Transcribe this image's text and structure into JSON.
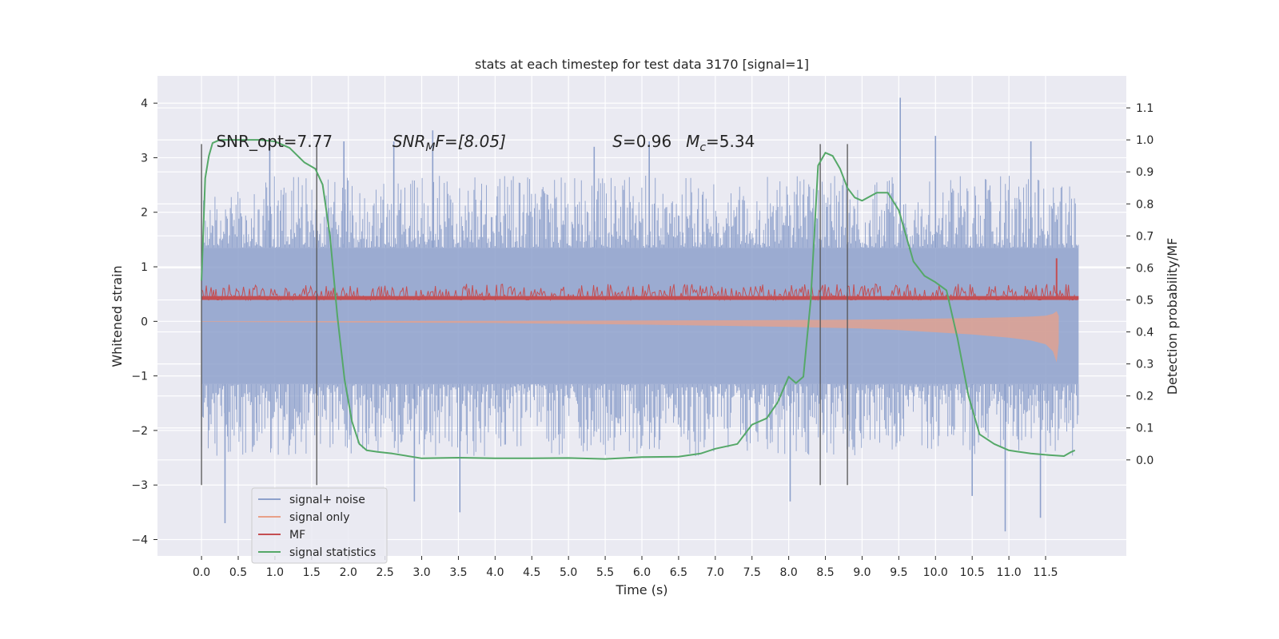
{
  "chart_data": {
    "type": "line",
    "title": "stats at each timestep for test data 3170 [signal=1]",
    "xlabel": "Time (s)",
    "ylabel": "Whitened strain",
    "y2label": "Detection probability/MF",
    "xlim": [
      -0.6,
      12.6
    ],
    "ylim": [
      -4.3,
      4.5
    ],
    "y2lim": [
      -0.3,
      1.2
    ],
    "xticks": [
      "0.0",
      "0.5",
      "1.0",
      "1.5",
      "2.0",
      "2.5",
      "3.0",
      "3.5",
      "4.0",
      "4.5",
      "5.0",
      "5.5",
      "6.0",
      "6.5",
      "7.0",
      "7.5",
      "8.0",
      "8.5",
      "9.0",
      "9.5",
      "10.0",
      "10.5",
      "11.0",
      "11.5"
    ],
    "yticks": [
      "4",
      "3",
      "2",
      "1",
      "0",
      "−1",
      "−2",
      "−3",
      "−4"
    ],
    "y2ticks": [
      "1.1",
      "1.0",
      "0.9",
      "0.8",
      "0.7",
      "0.6",
      "0.5",
      "0.4",
      "0.3",
      "0.2",
      "0.1",
      "0.0"
    ],
    "grid": true,
    "legend_position": "lower-left",
    "annotations": [
      {
        "prefix": "SNR_opt=7.77",
        "x": 0.2,
        "y": 3.3
      },
      {
        "prefix": "SNR",
        "sub": "M",
        "suffix": "F=[8.05]",
        "x": 2.6,
        "y": 3.3
      },
      {
        "prefix": "S",
        "suffix": "=0.96",
        "x": 5.6,
        "y": 3.3
      },
      {
        "prefix": "M",
        "sub": "c",
        "suffix": "=5.34",
        "x": 6.6,
        "y": 3.3
      }
    ],
    "vertical_lines": [
      {
        "x": 0.0,
        "y0": -3.0,
        "y1": 3.25
      },
      {
        "x": 1.57,
        "y0": -3.0,
        "y1": 3.25
      },
      {
        "x": 8.43,
        "y0": -3.0,
        "y1": 3.25
      },
      {
        "x": 8.8,
        "y0": -3.0,
        "y1": 3.25
      }
    ],
    "series": [
      {
        "name": "signal+ noise",
        "color": "#8da0cb",
        "axis": "left",
        "envelope": {
          "x_start": 0.0,
          "x_end": 11.95,
          "core_hi": 1.35,
          "core_lo": -1.15,
          "typical_hi": 2.5,
          "typical_lo": -2.3
        },
        "peaks": [
          {
            "x": 0.93,
            "y": 3.3
          },
          {
            "x": 1.94,
            "y": 3.3
          },
          {
            "x": 2.62,
            "y": 3.3
          },
          {
            "x": 3.15,
            "y": 3.5
          },
          {
            "x": 5.35,
            "y": 3.2
          },
          {
            "x": 6.1,
            "y": 3.3
          },
          {
            "x": 9.52,
            "y": 4.1
          },
          {
            "x": 10.0,
            "y": 3.4
          },
          {
            "x": 11.3,
            "y": 3.3
          },
          {
            "x": 0.32,
            "y": -3.7
          },
          {
            "x": 3.52,
            "y": -3.5
          },
          {
            "x": 10.5,
            "y": -3.2
          },
          {
            "x": 10.95,
            "y": -3.85
          },
          {
            "x": 11.43,
            "y": -3.6
          },
          {
            "x": 2.9,
            "y": -3.3
          },
          {
            "x": 8.02,
            "y": -3.3
          }
        ]
      },
      {
        "name": "signal only",
        "color": "#e8a088",
        "axis": "left",
        "x": [
          0.0,
          2.0,
          4.0,
          6.0,
          7.0,
          8.0,
          9.0,
          9.5,
          10.0,
          10.5,
          11.0,
          11.3,
          11.5,
          11.6,
          11.65,
          11.68
        ],
        "amplitude": [
          0.01,
          0.02,
          0.03,
          0.06,
          0.08,
          0.1,
          0.13,
          0.16,
          0.2,
          0.24,
          0.3,
          0.35,
          0.42,
          0.55,
          0.75,
          0.4
        ]
      },
      {
        "name": "MF",
        "color": "#c44e52",
        "axis": "right",
        "baseline": 0.5,
        "typical_max": 0.55,
        "spike": {
          "x": 11.65,
          "y": 0.63
        }
      },
      {
        "name": "signal statistics",
        "color": "#55a868",
        "axis": "right",
        "x": [
          0.0,
          0.05,
          0.1,
          0.15,
          0.25,
          0.5,
          0.8,
          1.0,
          1.2,
          1.4,
          1.55,
          1.65,
          1.75,
          1.85,
          1.95,
          2.05,
          2.15,
          2.25,
          2.4,
          2.6,
          3.0,
          3.5,
          4.0,
          4.5,
          5.0,
          5.5,
          6.0,
          6.5,
          6.8,
          7.0,
          7.3,
          7.5,
          7.7,
          7.85,
          8.0,
          8.1,
          8.2,
          8.3,
          8.4,
          8.5,
          8.6,
          8.7,
          8.8,
          8.9,
          9.0,
          9.2,
          9.35,
          9.5,
          9.6,
          9.7,
          9.85,
          10.0,
          10.15,
          10.3,
          10.45,
          10.6,
          10.8,
          11.0,
          11.3,
          11.55,
          11.75,
          11.85,
          11.9
        ],
        "y": [
          0.56,
          0.88,
          0.95,
          0.99,
          1.0,
          1.0,
          1.0,
          0.995,
          0.975,
          0.93,
          0.91,
          0.86,
          0.7,
          0.45,
          0.25,
          0.12,
          0.05,
          0.03,
          0.025,
          0.02,
          0.005,
          0.007,
          0.005,
          0.005,
          0.006,
          0.003,
          0.009,
          0.01,
          0.02,
          0.035,
          0.05,
          0.11,
          0.13,
          0.18,
          0.26,
          0.24,
          0.26,
          0.5,
          0.92,
          0.96,
          0.95,
          0.91,
          0.85,
          0.82,
          0.81,
          0.835,
          0.835,
          0.78,
          0.7,
          0.62,
          0.575,
          0.555,
          0.53,
          0.38,
          0.2,
          0.08,
          0.05,
          0.03,
          0.02,
          0.015,
          0.012,
          0.025,
          0.03
        ]
      }
    ]
  }
}
